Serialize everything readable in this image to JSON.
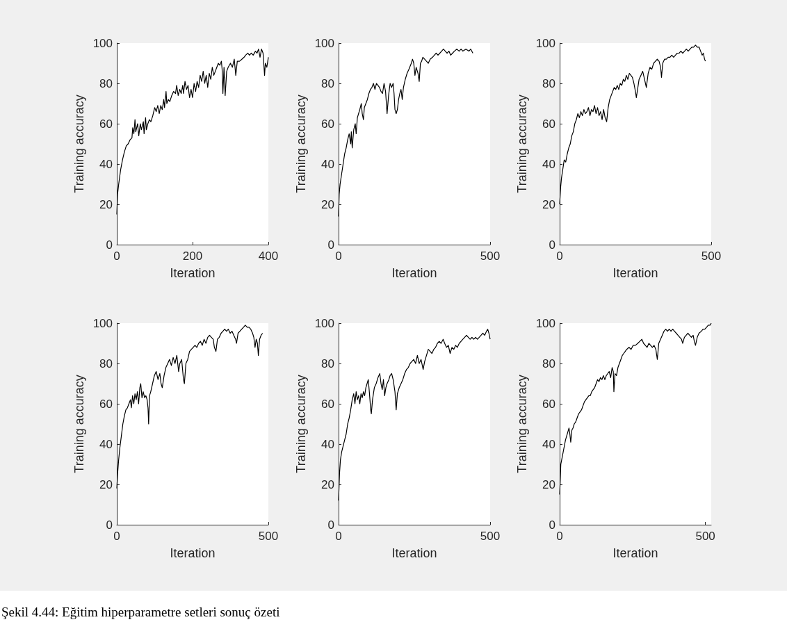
{
  "chart_data": [
    {
      "type": "line",
      "xlabel": "Iteration",
      "ylabel": "Training accuracy",
      "xlim": [
        0,
        400
      ],
      "xticks": [
        0,
        200,
        400
      ],
      "ylim": [
        0,
        100
      ],
      "yticks": [
        0,
        20,
        40,
        60,
        80,
        100
      ],
      "series": [
        {
          "color": "#000000",
          "x": [
            0,
            2,
            5,
            10,
            15,
            20,
            25,
            30,
            35,
            40,
            42,
            45,
            48,
            50,
            55,
            58,
            62,
            65,
            70,
            72,
            76,
            78,
            82,
            86,
            90,
            95,
            100,
            104,
            108,
            112,
            116,
            120,
            124,
            126,
            130,
            132,
            136,
            140,
            145,
            150,
            155,
            158,
            162,
            166,
            170,
            174,
            176,
            180,
            184,
            188,
            192,
            196,
            200,
            204,
            208,
            212,
            216,
            220,
            224,
            228,
            232,
            236,
            240,
            244,
            248,
            252,
            256,
            260,
            264,
            268,
            272,
            276,
            278,
            280,
            283,
            286,
            290,
            294,
            300,
            305,
            310,
            314,
            318,
            324,
            330,
            336,
            340,
            346,
            350,
            355,
            360,
            366,
            370,
            374,
            378,
            382,
            386,
            390,
            392,
            396,
            400
          ],
          "values": [
            15,
            25,
            30,
            37,
            42,
            46,
            49,
            50,
            52,
            53,
            58,
            55,
            62,
            56,
            60,
            54,
            60,
            57,
            61,
            55,
            63,
            57,
            60,
            62,
            61,
            64,
            68,
            66,
            69,
            65,
            69,
            67,
            72,
            68,
            76,
            70,
            72,
            71,
            74,
            76,
            75,
            79,
            74,
            77,
            75,
            79,
            75,
            81,
            77,
            79,
            73,
            77,
            73,
            80,
            76,
            81,
            78,
            84,
            81,
            86,
            80,
            84,
            78,
            85,
            82,
            88,
            84,
            86,
            88,
            90,
            89,
            91,
            87,
            75,
            88,
            74,
            86,
            88,
            90,
            88,
            92,
            84,
            91,
            91,
            92,
            93,
            94,
            95,
            94,
            95,
            94,
            96,
            95,
            97,
            93,
            97,
            95,
            84,
            90,
            88,
            93
          ]
        }
      ]
    },
    {
      "type": "line",
      "xlabel": "Iteration",
      "ylabel": "Training accuracy",
      "xlim": [
        0,
        500
      ],
      "xticks": [
        0,
        500
      ],
      "ylim": [
        0,
        100
      ],
      "yticks": [
        0,
        20,
        40,
        60,
        80,
        100
      ],
      "series": [
        {
          "color": "#000000",
          "x": [
            0,
            2,
            5,
            10,
            15,
            20,
            25,
            30,
            35,
            40,
            42,
            45,
            50,
            55,
            58,
            62,
            66,
            70,
            75,
            78,
            82,
            85,
            90,
            95,
            100,
            105,
            110,
            115,
            120,
            125,
            130,
            135,
            140,
            145,
            150,
            155,
            160,
            165,
            170,
            175,
            180,
            183,
            186,
            190,
            194,
            198,
            202,
            206,
            210,
            214,
            220,
            226,
            232,
            240,
            244,
            248,
            252,
            256,
            262,
            266,
            270,
            274,
            278,
            284,
            290,
            296,
            302,
            310,
            316,
            322,
            328,
            334,
            340,
            346,
            352,
            358,
            364,
            370,
            376,
            382,
            390,
            398,
            404,
            410,
            420,
            430,
            436,
            443
          ],
          "values": [
            14,
            25,
            30,
            35,
            40,
            45,
            48,
            52,
            55,
            50,
            56,
            48,
            57,
            60,
            55,
            63,
            65,
            67,
            70,
            65,
            62,
            68,
            70,
            72,
            75,
            77,
            78,
            80,
            77,
            80,
            79,
            78,
            76,
            75,
            80,
            76,
            65,
            74,
            80,
            78,
            80,
            75,
            67,
            65,
            67,
            72,
            75,
            77,
            72,
            78,
            82,
            85,
            87,
            90,
            92,
            90,
            84,
            88,
            85,
            81,
            90,
            91,
            93,
            92,
            91,
            90,
            92,
            93,
            94,
            95,
            94,
            95,
            96,
            97,
            96,
            95,
            96,
            94,
            95,
            96,
            97,
            96,
            97,
            96,
            97,
            96,
            97,
            95
          ]
        }
      ]
    },
    {
      "type": "line",
      "xlabel": "Iteration",
      "ylabel": "Training accuracy",
      "xlim": [
        0,
        500
      ],
      "xticks": [
        0,
        500
      ],
      "ylim": [
        0,
        100
      ],
      "yticks": [
        0,
        20,
        40,
        60,
        80,
        100
      ],
      "series": [
        {
          "color": "#000000",
          "x": [
            0,
            3,
            6,
            10,
            15,
            20,
            25,
            30,
            35,
            40,
            45,
            50,
            55,
            60,
            65,
            70,
            75,
            80,
            85,
            90,
            95,
            100,
            105,
            110,
            115,
            120,
            125,
            130,
            135,
            140,
            145,
            150,
            155,
            160,
            165,
            170,
            175,
            180,
            185,
            190,
            195,
            200,
            205,
            210,
            215,
            220,
            225,
            230,
            235,
            240,
            245,
            250,
            253,
            258,
            262,
            268,
            274,
            280,
            286,
            292,
            298,
            304,
            310,
            316,
            322,
            328,
            333,
            336,
            340,
            346,
            352,
            358,
            364,
            370,
            376,
            382,
            388,
            394,
            400,
            406,
            412,
            418,
            424,
            430,
            436,
            442,
            448,
            454,
            460,
            465,
            470,
            474,
            478,
            481
          ],
          "values": [
            20,
            28,
            33,
            37,
            42,
            41,
            45,
            48,
            50,
            54,
            56,
            60,
            62,
            65,
            63,
            66,
            64,
            67,
            65,
            66,
            68,
            64,
            67,
            66,
            69,
            65,
            68,
            64,
            66,
            62,
            67,
            63,
            61,
            68,
            72,
            74,
            76,
            78,
            77,
            79,
            77,
            80,
            79,
            82,
            81,
            84,
            82,
            85,
            84,
            83,
            80,
            76,
            73,
            78,
            82,
            84,
            86,
            82,
            78,
            85,
            88,
            87,
            90,
            91,
            92,
            91,
            88,
            83,
            90,
            92,
            92,
            93,
            93,
            94,
            93,
            94,
            95,
            95,
            96,
            95,
            96,
            97,
            96,
            97,
            98,
            98,
            99,
            98,
            98,
            96,
            94,
            95,
            92,
            91
          ]
        }
      ]
    },
    {
      "type": "line",
      "xlabel": "Iteration",
      "ylabel": "Training accuracy",
      "xlim": [
        0,
        500
      ],
      "xticks": [
        0,
        500
      ],
      "ylim": [
        0,
        100
      ],
      "yticks": [
        0,
        20,
        40,
        60,
        80,
        100
      ],
      "series": [
        {
          "color": "#000000",
          "x": [
            0,
            3,
            6,
            10,
            15,
            20,
            25,
            30,
            35,
            40,
            45,
            48,
            52,
            56,
            60,
            64,
            68,
            72,
            76,
            79,
            83,
            87,
            92,
            96,
            100,
            103,
            105,
            108,
            112,
            118,
            124,
            130,
            136,
            142,
            146,
            150,
            156,
            162,
            168,
            174,
            180,
            186,
            192,
            198,
            204,
            208,
            214,
            220,
            223,
            228,
            234,
            240,
            246,
            252,
            258,
            264,
            270,
            276,
            282,
            288,
            294,
            300,
            306,
            312,
            318,
            322,
            327,
            332,
            338,
            344,
            350,
            356,
            362,
            368,
            374,
            380,
            386,
            392,
            395,
            400,
            406,
            412,
            418,
            424,
            430,
            436,
            442,
            448,
            452,
            456,
            460,
            464,
            467,
            471,
            476,
            481
          ],
          "values": [
            18,
            26,
            32,
            38,
            44,
            50,
            54,
            57,
            58,
            60,
            62,
            58,
            64,
            60,
            65,
            62,
            66,
            60,
            68,
            70,
            63,
            66,
            63,
            64,
            62,
            58,
            50,
            64,
            66,
            70,
            74,
            76,
            72,
            75,
            70,
            68,
            74,
            78,
            80,
            82,
            79,
            83,
            80,
            84,
            76,
            80,
            82,
            72,
            70,
            80,
            82,
            86,
            87,
            88,
            89,
            88,
            90,
            91,
            89,
            92,
            90,
            93,
            94,
            93,
            92,
            88,
            86,
            92,
            93,
            95,
            96,
            97,
            96,
            97,
            95,
            96,
            94,
            92,
            90,
            95,
            96,
            97,
            98,
            99,
            98,
            98,
            97,
            95,
            93,
            88,
            92,
            90,
            84,
            92,
            94,
            95
          ]
        }
      ]
    },
    {
      "type": "line",
      "xlabel": "Iteration",
      "ylabel": "Training accuracy",
      "xlim": [
        0,
        500
      ],
      "xticks": [
        0,
        500
      ],
      "ylim": [
        0,
        100
      ],
      "yticks": [
        0,
        20,
        40,
        60,
        80,
        100
      ],
      "series": [
        {
          "color": "#000000",
          "x": [
            0,
            3,
            6,
            10,
            15,
            20,
            25,
            30,
            35,
            40,
            45,
            50,
            54,
            58,
            62,
            66,
            70,
            74,
            78,
            82,
            86,
            90,
            94,
            98,
            102,
            106,
            108,
            112,
            118,
            124,
            130,
            136,
            140,
            144,
            148,
            152,
            156,
            160,
            166,
            170,
            175,
            180,
            186,
            190,
            194,
            200,
            206,
            212,
            218,
            224,
            230,
            236,
            242,
            248,
            254,
            260,
            266,
            272,
            279,
            284,
            290,
            296,
            302,
            308,
            314,
            320,
            326,
            332,
            338,
            345,
            350,
            356,
            362,
            368,
            374,
            380,
            386,
            392,
            398,
            404,
            410,
            416,
            422,
            428,
            434,
            440,
            446,
            452,
            458,
            464,
            470,
            476,
            482,
            488,
            492,
            496,
            500
          ],
          "values": [
            12,
            25,
            32,
            36,
            39,
            42,
            45,
            50,
            53,
            57,
            62,
            65,
            60,
            66,
            62,
            64,
            60,
            65,
            63,
            66,
            64,
            68,
            70,
            72,
            65,
            57,
            55,
            62,
            68,
            70,
            73,
            75,
            70,
            67,
            72,
            64,
            68,
            70,
            72,
            74,
            75,
            72,
            66,
            57,
            65,
            68,
            70,
            72,
            75,
            77,
            78,
            80,
            81,
            82,
            80,
            84,
            80,
            82,
            77,
            81,
            84,
            87,
            86,
            85,
            87,
            88,
            90,
            91,
            90,
            92,
            90,
            88,
            89,
            85,
            88,
            87,
            89,
            88,
            90,
            91,
            92,
            93,
            94,
            93,
            92,
            93,
            92,
            93,
            92,
            93,
            94,
            95,
            94,
            96,
            97,
            95,
            92
          ]
        }
      ]
    },
    {
      "type": "line",
      "xlabel": "Iteration",
      "ylabel": "Training accuracy",
      "xlim": [
        0,
        520
      ],
      "xticks": [
        0,
        500
      ],
      "ylim": [
        0,
        100
      ],
      "yticks": [
        0,
        20,
        40,
        60,
        80,
        100
      ],
      "annotations": [
        "Şekil 4.44: Eğitim hiperparametre setleri sonuç özeti"
      ],
      "series": [
        {
          "color": "#000000",
          "x": [
            0,
            2,
            4,
            8,
            12,
            16,
            20,
            24,
            28,
            32,
            35,
            38,
            42,
            46,
            50,
            55,
            60,
            65,
            70,
            75,
            80,
            85,
            90,
            95,
            100,
            105,
            110,
            115,
            120,
            125,
            130,
            135,
            140,
            145,
            150,
            155,
            160,
            165,
            170,
            175,
            180,
            184,
            186,
            190,
            195,
            200,
            205,
            210,
            215,
            220,
            225,
            230,
            238,
            245,
            252,
            260,
            268,
            275,
            282,
            288,
            294,
            300,
            306,
            312,
            318,
            324,
            330,
            335,
            340,
            346,
            352,
            358,
            364,
            370,
            376,
            382,
            388,
            394,
            400,
            406,
            412,
            418,
            422,
            428,
            434,
            440,
            446,
            452,
            458,
            462,
            466,
            472,
            478,
            486,
            492,
            498,
            504,
            510,
            516,
            520
          ],
          "values": [
            15,
            22,
            30,
            33,
            36,
            39,
            42,
            44,
            46,
            48,
            45,
            41,
            47,
            48,
            50,
            51,
            53,
            55,
            56,
            57,
            59,
            61,
            62,
            63,
            64,
            64,
            66,
            67,
            68,
            70,
            72,
            71,
            73,
            72,
            74,
            72,
            74,
            75,
            76,
            73,
            78,
            76,
            66,
            75,
            74,
            78,
            80,
            82,
            84,
            85,
            86,
            87,
            88,
            87,
            89,
            89,
            90,
            91,
            92,
            90,
            89,
            88,
            90,
            89,
            88,
            89,
            87,
            82,
            90,
            92,
            94,
            96,
            97,
            96,
            97,
            96,
            97,
            96,
            95,
            94,
            93,
            92,
            90,
            93,
            94,
            95,
            94,
            93,
            94,
            91,
            89,
            93,
            95,
            96,
            97,
            97,
            98,
            99,
            99,
            100
          ]
        }
      ]
    }
  ]
}
